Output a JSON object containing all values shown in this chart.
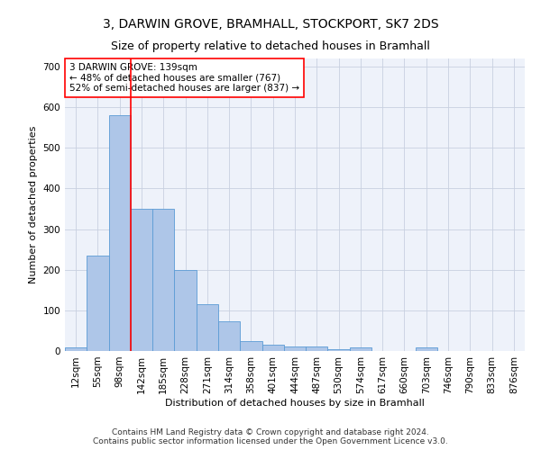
{
  "title": "3, DARWIN GROVE, BRAMHALL, STOCKPORT, SK7 2DS",
  "subtitle": "Size of property relative to detached houses in Bramhall",
  "xlabel": "Distribution of detached houses by size in Bramhall",
  "ylabel": "Number of detached properties",
  "footer": "Contains HM Land Registry data © Crown copyright and database right 2024.\nContains public sector information licensed under the Open Government Licence v3.0.",
  "bar_labels": [
    "12sqm",
    "55sqm",
    "98sqm",
    "142sqm",
    "185sqm",
    "228sqm",
    "271sqm",
    "314sqm",
    "358sqm",
    "401sqm",
    "444sqm",
    "487sqm",
    "530sqm",
    "574sqm",
    "617sqm",
    "660sqm",
    "703sqm",
    "746sqm",
    "790sqm",
    "833sqm",
    "876sqm"
  ],
  "bar_heights": [
    8,
    235,
    580,
    350,
    350,
    200,
    115,
    73,
    25,
    15,
    10,
    10,
    5,
    8,
    0,
    0,
    8,
    0,
    0,
    0,
    0
  ],
  "bar_color": "#aec6e8",
  "bar_edge_color": "#5b9bd5",
  "bar_width": 1.0,
  "red_line_x": 2.5,
  "annotation_line1": "3 DARWIN GROVE: 139sqm",
  "annotation_line2": "← 48% of detached houses are smaller (767)",
  "annotation_line3": "52% of semi-detached houses are larger (837) →",
  "ylim": [
    0,
    720
  ],
  "yticks": [
    0,
    100,
    200,
    300,
    400,
    500,
    600,
    700
  ],
  "background_color": "#eef2fa",
  "grid_color": "#c8d0e0",
  "title_fontsize": 10,
  "subtitle_fontsize": 9,
  "axis_label_fontsize": 8,
  "tick_fontsize": 7.5,
  "footer_fontsize": 6.5,
  "annotation_fontsize": 7.5
}
